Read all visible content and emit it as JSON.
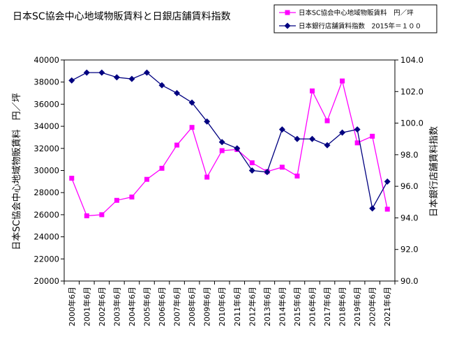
{
  "chart_data": {
    "type": "line",
    "title": "日本SC協会中心地域物販賃料と日銀店舗賃料指数",
    "xlabel": "",
    "categories": [
      "2000年6月",
      "2001年6月",
      "2002年6月",
      "2003年6月",
      "2004年6月",
      "2005年6月",
      "2006年6月",
      "2007年6月",
      "2008年6月",
      "2009年6月",
      "2010年6月",
      "2011年6月",
      "2012年6月",
      "2013年6月",
      "2014年6月",
      "2015年6月",
      "2016年6月",
      "2017年6月",
      "2018年6月",
      "2019年6月",
      "2020年6月",
      "2021年6月"
    ],
    "ylabel_left": "日本SC協会中心地域物販賃料　円／坪",
    "ylabel_right": "日本銀行店舗賃料指数",
    "ylim_left": [
      20000,
      40000
    ],
    "ylim_right": [
      90.0,
      104.0
    ],
    "yticks_left": [
      "20000",
      "22000",
      "24000",
      "26000",
      "28000",
      "30000",
      "32000",
      "34000",
      "36000",
      "38000",
      "40000"
    ],
    "yticks_right": [
      "90.0",
      "92.0",
      "94.0",
      "96.0",
      "98.0",
      "100.0",
      "102.0",
      "104.0"
    ],
    "grid": false,
    "legend_position": "top-right",
    "series": [
      {
        "name": "日本SC協会中心地域物販賃料　円／坪",
        "axis": "left",
        "color": "#ff00ff",
        "marker": "square",
        "values": [
          29300,
          25900,
          26000,
          27300,
          27600,
          29200,
          30200,
          32300,
          33900,
          29400,
          31800,
          31900,
          30700,
          29900,
          30300,
          29500,
          37200,
          34500,
          38100,
          32500,
          33100,
          26500
        ]
      },
      {
        "name": "日本銀行店舗賃料指数　2015年＝１００",
        "axis": "right",
        "color": "#000080",
        "marker": "diamond",
        "values": [
          102.7,
          103.2,
          103.2,
          102.9,
          102.8,
          103.2,
          102.4,
          101.9,
          101.3,
          100.1,
          98.8,
          98.4,
          97.0,
          96.9,
          99.6,
          99.0,
          99.0,
          98.6,
          99.4,
          99.6,
          94.6,
          96.3
        ]
      }
    ]
  }
}
